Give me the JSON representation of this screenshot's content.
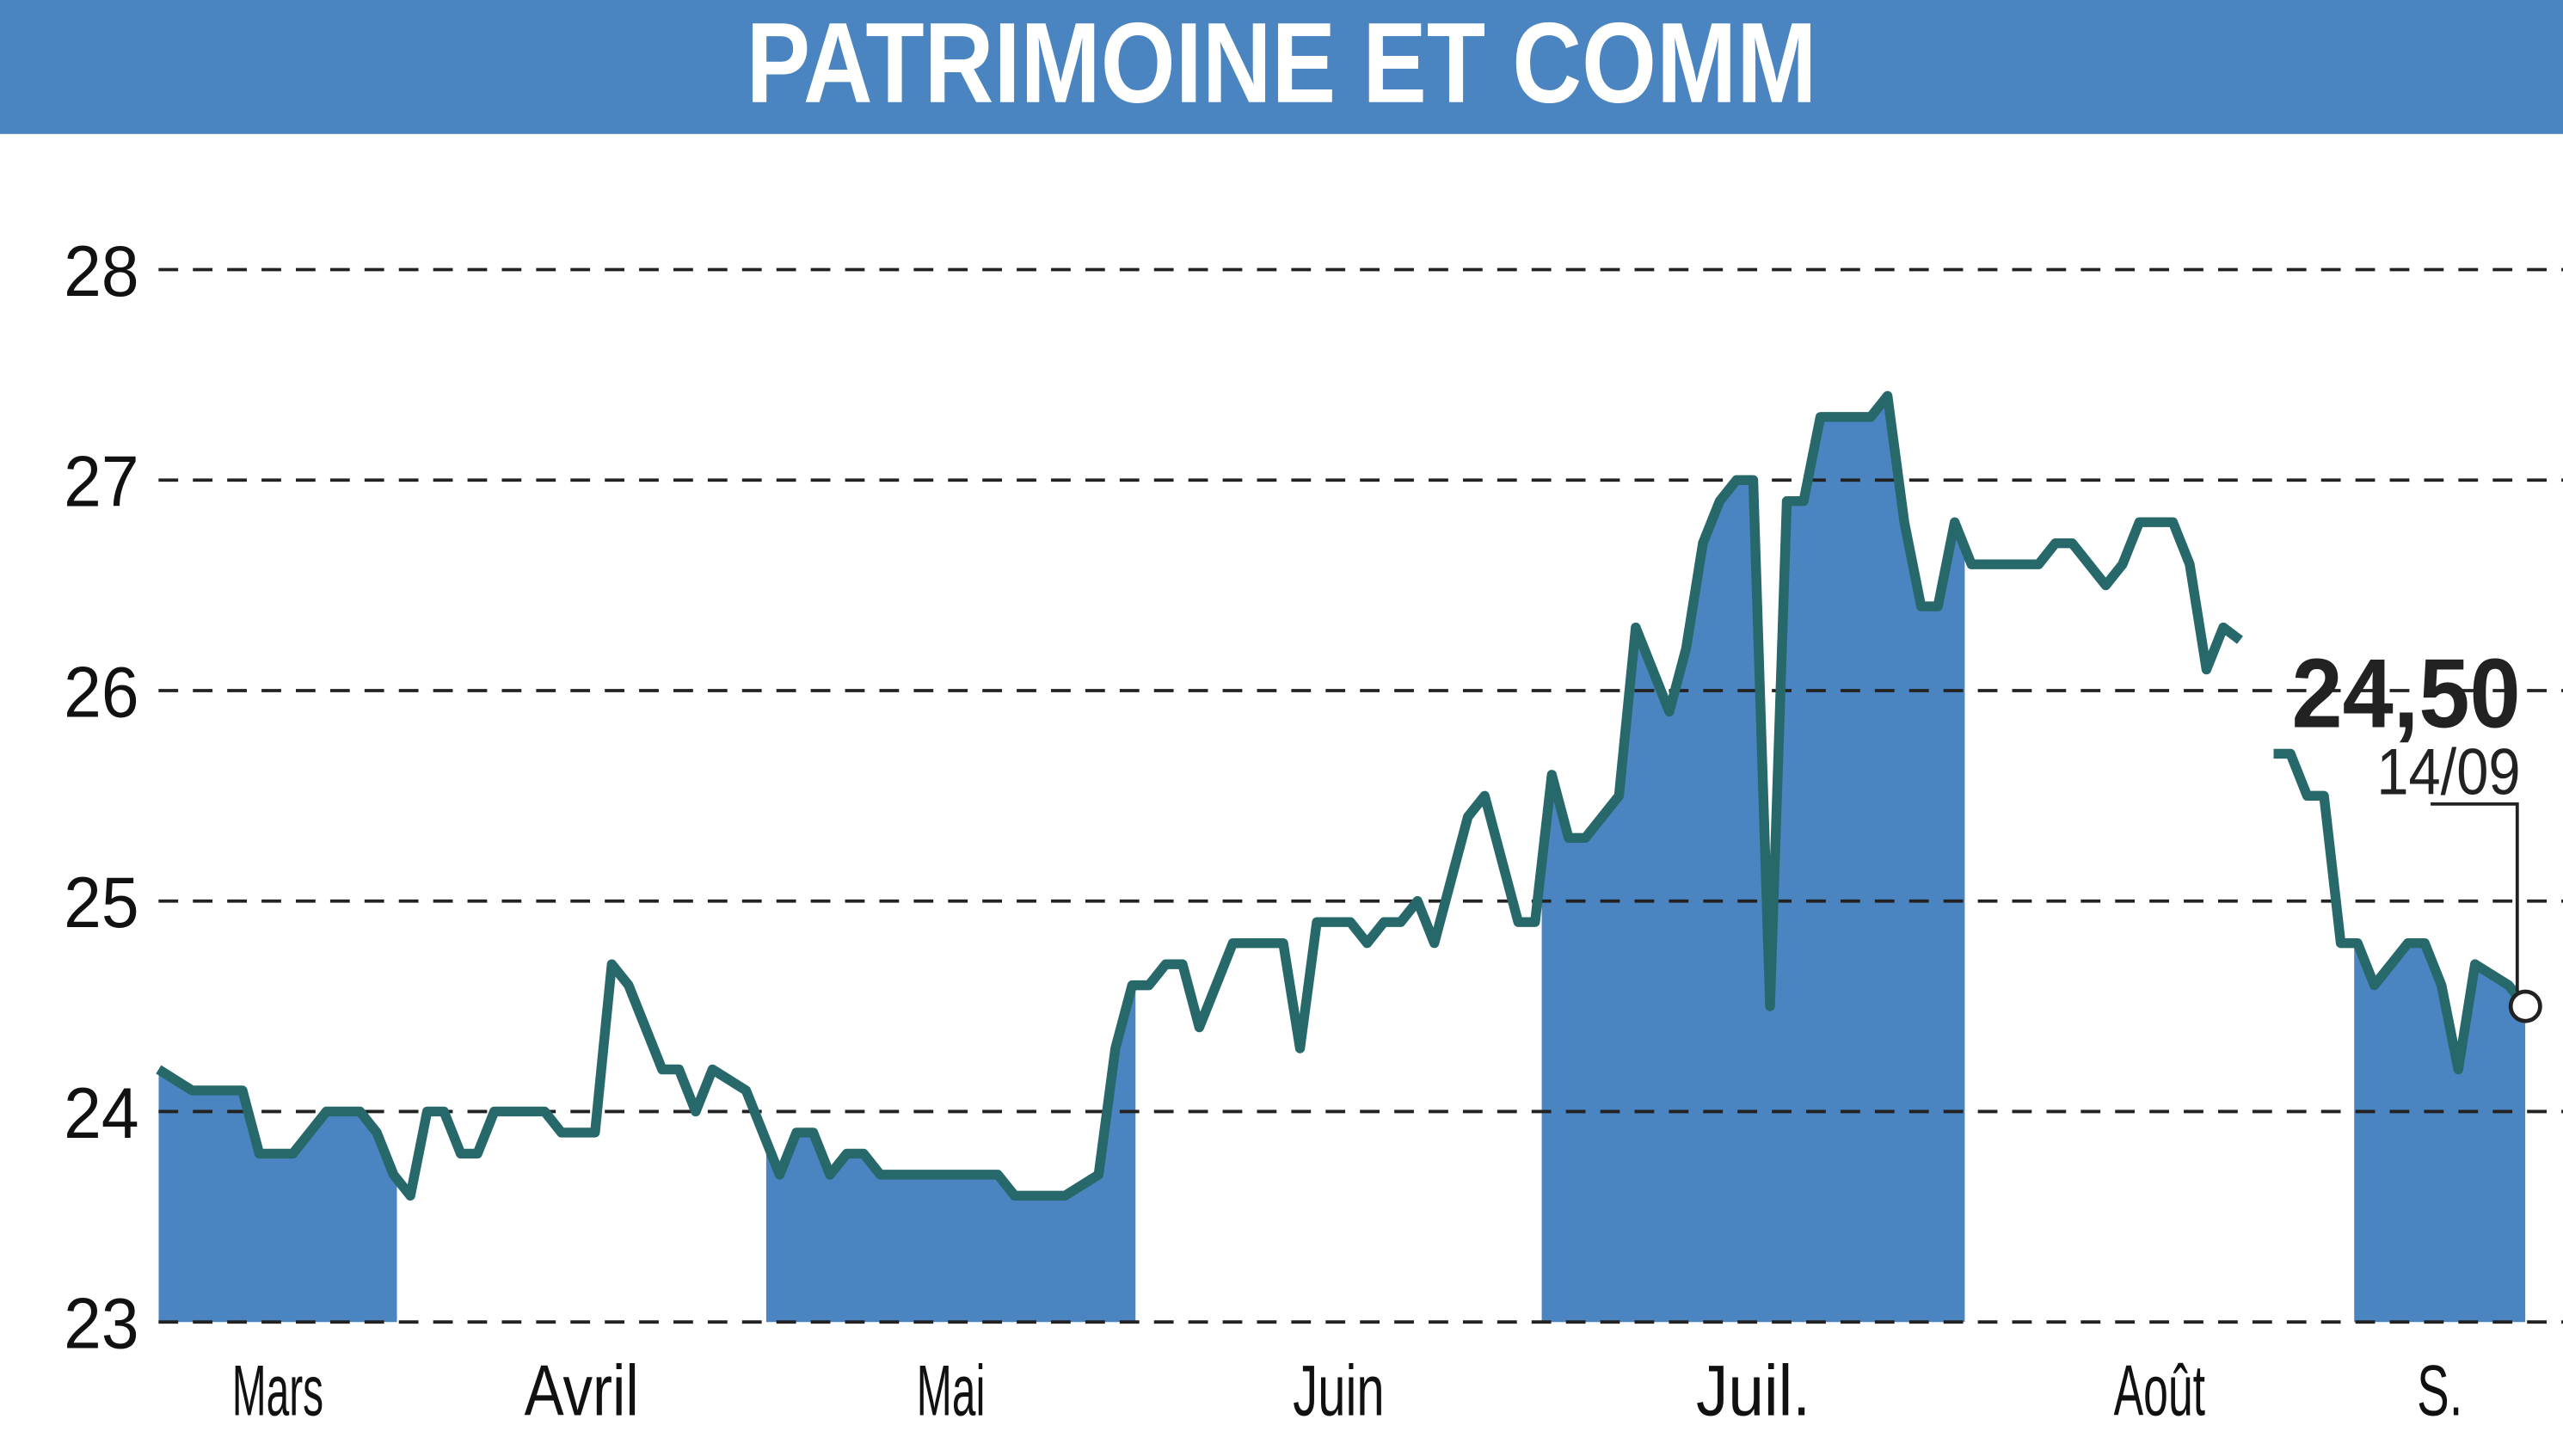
{
  "chart_data": {
    "type": "line",
    "title": "PATRIMOINE ET COMM",
    "x": [
      0,
      2,
      5,
      6,
      8,
      10,
      12,
      13,
      14,
      15,
      16,
      17,
      18,
      19,
      20,
      23,
      24,
      26,
      27,
      28,
      30,
      31,
      32,
      33,
      35,
      37,
      38,
      39,
      40,
      41,
      42,
      43,
      50,
      51,
      54,
      56,
      57,
      58,
      59,
      60,
      61,
      62,
      64,
      67,
      68,
      69,
      71,
      72,
      73,
      74,
      75,
      76,
      78,
      79,
      81,
      82,
      83,
      84,
      85,
      87,
      88,
      90,
      91,
      92,
      93,
      94,
      95,
      96,
      97,
      98,
      99,
      102,
      103,
      104,
      105,
      106,
      107,
      108,
      112,
      113,
      114,
      116,
      117,
      118,
      120,
      121,
      122,
      123,
      124,
      125,
      126,
      127,
      128,
      129,
      130,
      131,
      132,
      134,
      135,
      136,
      137,
      138,
      140,
      141
    ],
    "values": [
      24.2,
      24.1,
      24.1,
      23.8,
      23.8,
      24.0,
      24.0,
      23.9,
      23.7,
      23.6,
      24.0,
      24.0,
      23.8,
      23.8,
      24.0,
      24.0,
      23.9,
      23.9,
      24.7,
      24.6,
      24.2,
      24.2,
      24.0,
      24.2,
      24.1,
      23.7,
      23.9,
      23.9,
      23.7,
      23.8,
      23.8,
      23.7,
      23.7,
      23.6,
      23.6,
      23.7,
      24.3,
      24.6,
      24.6,
      24.7,
      24.7,
      24.4,
      24.8,
      24.8,
      24.3,
      24.9,
      24.9,
      24.8,
      24.9,
      24.9,
      25.0,
      24.8,
      25.4,
      25.5,
      24.9,
      24.9,
      25.6,
      25.3,
      25.3,
      25.5,
      26.3,
      25.9,
      26.2,
      26.7,
      26.9,
      27.0,
      27.0,
      24.5,
      26.9,
      26.9,
      27.3,
      27.3,
      27.4,
      26.8,
      26.4,
      26.4,
      26.8,
      26.6,
      26.6,
      26.7,
      26.7,
      26.5,
      26.6,
      26.8,
      26.8,
      26.6,
      26.1,
      26.3,
      26.24,
      null,
      25.7,
      25.7,
      25.5,
      25.5,
      24.8,
      24.8,
      24.6,
      24.8,
      24.8,
      24.6,
      24.2,
      24.7,
      24.6,
      24.5
    ],
    "color": "#27686a",
    "area_color": "#4a84c1",
    "xlim": [
      0,
      141
    ],
    "ylim": [
      23,
      28.0
    ],
    "yticks": [
      23,
      24,
      25,
      26,
      27,
      28
    ],
    "grid": true,
    "months": [
      "Mars",
      "Avril",
      "Mai",
      "Juin",
      "Juil.",
      "Août",
      "S."
    ],
    "month_edges": [
      0,
      14.2,
      36.2,
      58.2,
      82.4,
      107.6,
      130.8,
      141
    ],
    "annotation": {
      "label": "24,50",
      "date": "14/09"
    }
  }
}
